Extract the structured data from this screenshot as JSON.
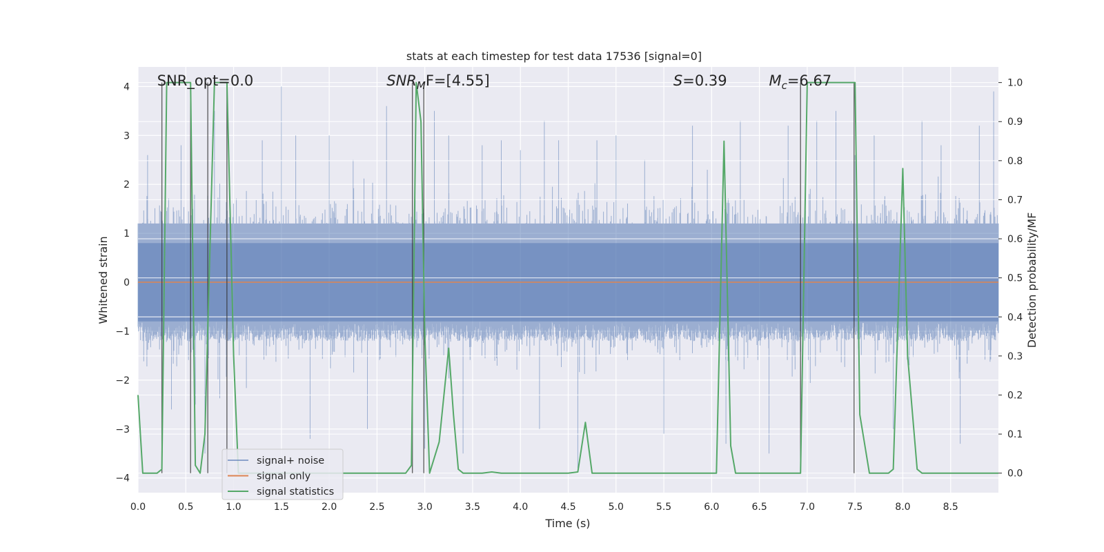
{
  "chart_data": {
    "type": "line",
    "title": "stats at each timestep for test data 17536 [signal=0]",
    "xlabel": "Time (s)",
    "ylabel": "Whitened strain",
    "ylabel_right": "Detection probability/MF",
    "xlim": [
      0.0,
      9.0
    ],
    "ylim": [
      -4.3,
      4.4
    ],
    "ylim_right": [
      -0.05,
      1.04
    ],
    "xticks": [
      0.0,
      0.5,
      1.0,
      1.5,
      2.0,
      2.5,
      3.0,
      3.5,
      4.0,
      4.5,
      5.0,
      5.5,
      6.0,
      6.5,
      7.0,
      7.5,
      8.0,
      8.5
    ],
    "xtick_labels": [
      "0.0",
      "0.5",
      "1.0",
      "1.5",
      "2.0",
      "2.5",
      "3.0",
      "3.5",
      "4.0",
      "4.5",
      "5.0",
      "5.5",
      "6.0",
      "6.5",
      "7.0",
      "7.5",
      "8.0",
      "8.5"
    ],
    "yticks": [
      -4,
      -3,
      -2,
      -1,
      0,
      1,
      2,
      3,
      4
    ],
    "ytick_labels": [
      "−4",
      "−3",
      "−2",
      "−1",
      "0",
      "1",
      "2",
      "3",
      "4"
    ],
    "yticks_right": [
      0.0,
      0.1,
      0.2,
      0.3,
      0.4,
      0.5,
      0.6,
      0.7,
      0.8,
      0.9,
      1.0
    ],
    "ytick_labels_right": [
      "0.0",
      "0.1",
      "0.2",
      "0.3",
      "0.4",
      "0.5",
      "0.6",
      "0.7",
      "0.8",
      "0.9",
      "1.0"
    ],
    "annotations": [
      {
        "text": "SNR_opt=0.0",
        "x": 0.2
      },
      {
        "text": "SNR",
        "sub": "M",
        "rest": "F=[4.55]",
        "x": 2.6
      },
      {
        "text": "S",
        "rest": "=0.39",
        "x": 5.6
      },
      {
        "text": "M",
        "sub": "c",
        "rest": "=6.67",
        "x": 6.6
      }
    ],
    "legend": {
      "position": "lower-left",
      "entries": [
        {
          "label": "signal+ noise",
          "color": "#4c72b0"
        },
        {
          "label": "signal only",
          "color": "#dd8452"
        },
        {
          "label": "signal statistics",
          "color": "#55a868"
        }
      ]
    },
    "series": [
      {
        "name": "signal+ noise",
        "axis": "left",
        "style": "dense-noise",
        "color": "#4c72b0",
        "alpha": 0.5,
        "duration": 9.0,
        "typical_range": [
          -1.6,
          1.6
        ],
        "peaks": [
          [
            0.1,
            2.6
          ],
          [
            0.25,
            1.2
          ],
          [
            0.35,
            -2.6
          ],
          [
            0.45,
            2.8
          ],
          [
            0.6,
            -2.5
          ],
          [
            0.7,
            -3.5
          ],
          [
            0.8,
            3.5
          ],
          [
            1.3,
            2.9
          ],
          [
            1.5,
            4.0
          ],
          [
            1.65,
            3.0
          ],
          [
            1.8,
            -3.2
          ],
          [
            2.0,
            3.0
          ],
          [
            2.25,
            2.5
          ],
          [
            2.4,
            -3.0
          ],
          [
            2.6,
            3.6
          ],
          [
            2.9,
            1.7
          ],
          [
            3.0,
            -3.4
          ],
          [
            3.1,
            3.5
          ],
          [
            3.25,
            3.0
          ],
          [
            3.4,
            -3.5
          ],
          [
            3.6,
            2.8
          ],
          [
            3.8,
            2.9
          ],
          [
            4.0,
            2.7
          ],
          [
            4.2,
            -3.0
          ],
          [
            4.25,
            3.3
          ],
          [
            4.4,
            2.9
          ],
          [
            4.6,
            -3.8
          ],
          [
            4.8,
            2.9
          ],
          [
            5.0,
            3.0
          ],
          [
            5.3,
            2.5
          ],
          [
            5.5,
            -3.1
          ],
          [
            5.8,
            3.2
          ],
          [
            6.15,
            -3.3
          ],
          [
            6.3,
            3.3
          ],
          [
            6.6,
            -3.5
          ],
          [
            6.8,
            3.2
          ],
          [
            7.1,
            3.3
          ],
          [
            7.3,
            3.5
          ],
          [
            7.5,
            2.6
          ],
          [
            7.7,
            3.0
          ],
          [
            7.9,
            -3.0
          ],
          [
            8.2,
            3.3
          ],
          [
            8.4,
            2.8
          ],
          [
            8.6,
            -3.3
          ],
          [
            8.8,
            3.2
          ],
          [
            8.95,
            3.9
          ]
        ]
      },
      {
        "name": "signal only",
        "axis": "left",
        "color": "#dd8452",
        "x": [
          0.0,
          9.0
        ],
        "y": [
          0.0,
          0.0
        ]
      },
      {
        "name": "signal statistics",
        "axis": "right",
        "color": "#55a868",
        "x": [
          0.0,
          0.05,
          0.15,
          0.2,
          0.25,
          0.3,
          0.55,
          0.6,
          0.65,
          0.7,
          0.8,
          0.93,
          1.0,
          1.05,
          1.1,
          1.2,
          2.0,
          2.8,
          2.86,
          2.91,
          2.96,
          3.0,
          3.05,
          3.15,
          3.25,
          3.3,
          3.35,
          3.4,
          3.6,
          3.7,
          3.8,
          4.0,
          4.5,
          4.6,
          4.68,
          4.75,
          5.0,
          5.5,
          6.05,
          6.13,
          6.2,
          6.25,
          6.5,
          6.93,
          7.0,
          7.5,
          7.55,
          7.65,
          7.85,
          7.9,
          8.0,
          8.05,
          8.15,
          8.2,
          8.5,
          9.0
        ],
        "y": [
          0.2,
          0.0,
          0.0,
          0.0,
          0.01,
          1.0,
          1.0,
          0.02,
          0.0,
          0.1,
          1.0,
          1.0,
          0.3,
          0.0,
          0.0,
          0.0,
          0.0,
          0.0,
          0.02,
          1.0,
          0.9,
          0.35,
          0.0,
          0.08,
          0.32,
          0.15,
          0.01,
          0.0,
          0.0,
          0.003,
          0.0,
          0.0,
          0.0,
          0.003,
          0.13,
          0.0,
          0.0,
          0.0,
          0.0,
          0.85,
          0.07,
          0.0,
          0.0,
          0.0,
          1.0,
          1.0,
          0.15,
          0.0,
          0.0,
          0.01,
          0.78,
          0.3,
          0.01,
          0.0,
          0.0,
          0.0
        ]
      }
    ],
    "vertical_markers": [
      0.25,
      0.55,
      0.73,
      0.93,
      2.87,
      2.99,
      6.93,
      7.49
    ]
  }
}
